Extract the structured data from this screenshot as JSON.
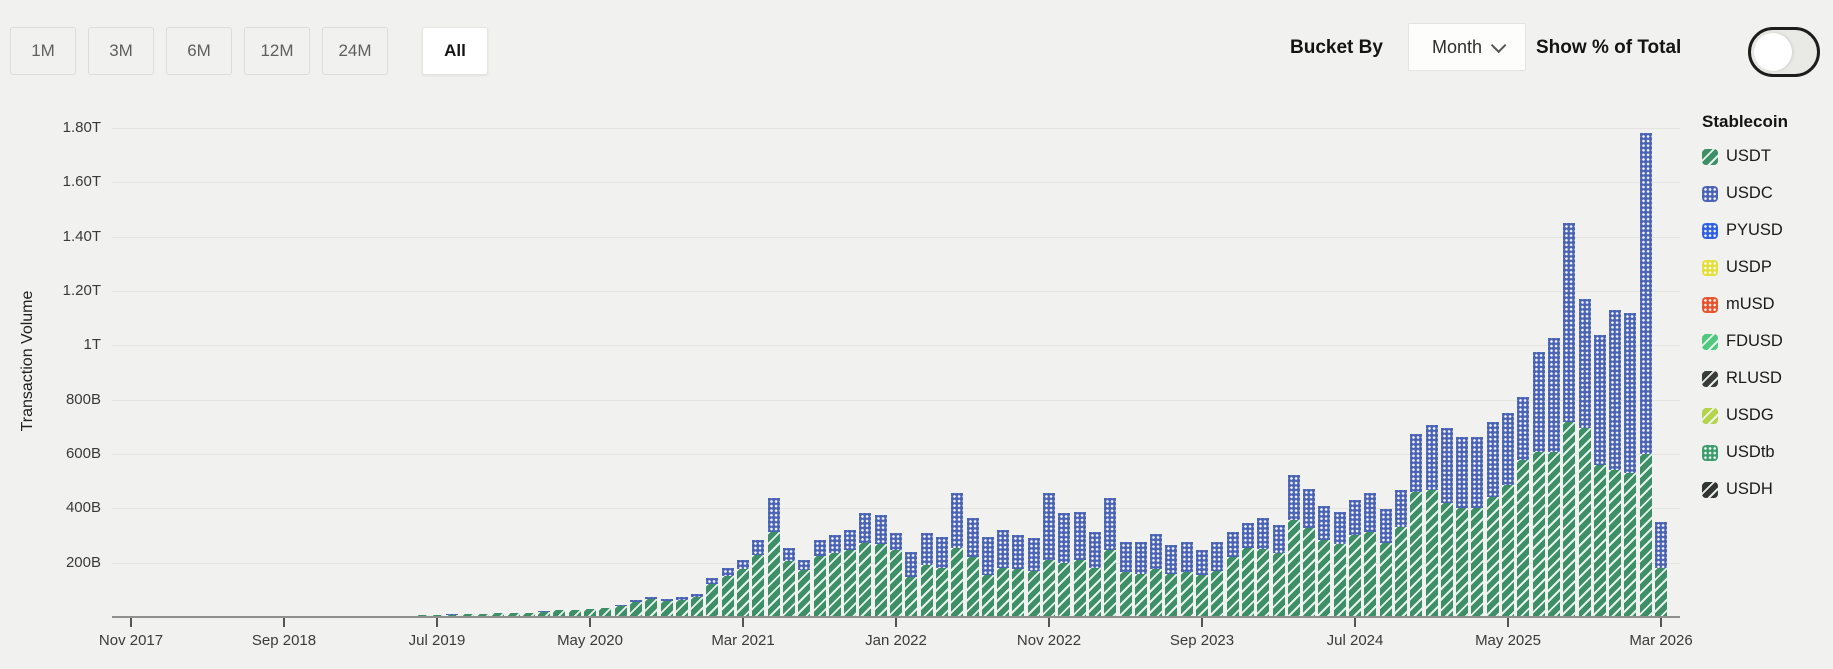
{
  "controls": {
    "range_buttons": [
      {
        "label": "1M",
        "selected": false
      },
      {
        "label": "3M",
        "selected": false
      },
      {
        "label": "6M",
        "selected": false
      },
      {
        "label": "12M",
        "selected": false
      },
      {
        "label": "24M",
        "selected": false
      },
      {
        "label": "All",
        "selected": true
      }
    ],
    "bucket_by_label": "Bucket By",
    "bucket_value": "Month",
    "show_pct_label": "Show % of Total",
    "show_pct_toggle_on": false
  },
  "icons": {
    "bucket_dropdown_chevron": "chevron-down",
    "toggle_knob": "circle"
  },
  "legend": {
    "title": "Stablecoin",
    "items": [
      {
        "label": "USDT",
        "color": "#3E8E68",
        "pattern": "diagonal"
      },
      {
        "label": "USDC",
        "color": "#4A63B4",
        "pattern": "dots"
      },
      {
        "label": "PYUSD",
        "color": "#2E5FE6",
        "pattern": "dots"
      },
      {
        "label": "USDP",
        "color": "#E3DE39",
        "pattern": "dots"
      },
      {
        "label": "mUSD",
        "color": "#E8532C",
        "pattern": "dots"
      },
      {
        "label": "FDUSD",
        "color": "#4FC97D",
        "pattern": "diagonal"
      },
      {
        "label": "RLUSD",
        "color": "#3B3B3B",
        "pattern": "diagonal"
      },
      {
        "label": "USDG",
        "color": "#B5D44B",
        "pattern": "diagonal"
      },
      {
        "label": "USDtb",
        "color": "#3B9C6C",
        "pattern": "dots"
      },
      {
        "label": "USDH",
        "color": "#343434",
        "pattern": "diagonal"
      }
    ]
  },
  "chart_data": {
    "type": "bar",
    "stacked": true,
    "unit": "billions USD",
    "ylabel": "Transaction Volume",
    "xlabel": "",
    "grid": "horizontal",
    "legend_position": "right",
    "ylim": [
      0,
      1900
    ],
    "yticks": [
      {
        "value": 200,
        "label": "200B"
      },
      {
        "value": 400,
        "label": "400B"
      },
      {
        "value": 600,
        "label": "600B"
      },
      {
        "value": 800,
        "label": "800B"
      },
      {
        "value": 1000,
        "label": "1T"
      },
      {
        "value": 1200,
        "label": "1.20T"
      },
      {
        "value": 1400,
        "label": "1.40T"
      },
      {
        "value": 1600,
        "label": "1.60T"
      },
      {
        "value": 1800,
        "label": "1.80T"
      }
    ],
    "xticks": [
      {
        "month_index": 0,
        "label": "Nov 2017"
      },
      {
        "month_index": 10,
        "label": "Sep 2018"
      },
      {
        "month_index": 20,
        "label": "Jul 2019"
      },
      {
        "month_index": 30,
        "label": "May 2020"
      },
      {
        "month_index": 40,
        "label": "Mar 2021"
      },
      {
        "month_index": 50,
        "label": "Jan 2022"
      },
      {
        "month_index": 60,
        "label": "Nov 2022"
      },
      {
        "month_index": 70,
        "label": "Sep 2023"
      },
      {
        "month_index": 80,
        "label": "Jul 2024"
      },
      {
        "month_index": 90,
        "label": "May 2025"
      },
      {
        "month_index": 100,
        "label": "Mar 2026"
      }
    ],
    "months": [
      "Nov 2017",
      "Dec 2017",
      "Jan 2018",
      "Feb 2018",
      "Mar 2018",
      "Apr 2018",
      "May 2018",
      "Jun 2018",
      "Jul 2018",
      "Aug 2018",
      "Sep 2018",
      "Oct 2018",
      "Nov 2018",
      "Dec 2018",
      "Jan 2019",
      "Feb 2019",
      "Mar 2019",
      "Apr 2019",
      "May 2019",
      "Jun 2019",
      "Jul 2019",
      "Aug 2019",
      "Sep 2019",
      "Oct 2019",
      "Nov 2019",
      "Dec 2019",
      "Jan 2020",
      "Feb 2020",
      "Mar 2020",
      "Apr 2020",
      "May 2020",
      "Jun 2020",
      "Jul 2020",
      "Aug 2020",
      "Sep 2020",
      "Oct 2020",
      "Nov 2020",
      "Dec 2020",
      "Jan 2021",
      "Feb 2021",
      "Mar 2021",
      "Apr 2021",
      "May 2021",
      "Jun 2021",
      "Jul 2021",
      "Aug 2021",
      "Sep 2021",
      "Oct 2021",
      "Nov 2021",
      "Dec 2021",
      "Jan 2022",
      "Feb 2022",
      "Mar 2022",
      "Apr 2022",
      "May 2022",
      "Jun 2022",
      "Jul 2022",
      "Aug 2022",
      "Sep 2022",
      "Oct 2022",
      "Nov 2022",
      "Dec 2022",
      "Jan 2023",
      "Feb 2023",
      "Mar 2023",
      "Apr 2023",
      "May 2023",
      "Jun 2023",
      "Jul 2023",
      "Aug 2023",
      "Sep 2023",
      "Oct 2023",
      "Nov 2023",
      "Dec 2023",
      "Jan 2024",
      "Feb 2024",
      "Mar 2024",
      "Apr 2024",
      "May 2024",
      "Jun 2024",
      "Jul 2024",
      "Aug 2024",
      "Sep 2024",
      "Oct 2024",
      "Nov 2024",
      "Dec 2024",
      "Jan 2025",
      "Feb 2025",
      "Mar 2025",
      "Apr 2025",
      "May 2025",
      "Jun 2025",
      "Jul 2025",
      "Aug 2025",
      "Sep 2025",
      "Oct 2025",
      "Nov 2025",
      "Dec 2025",
      "Jan 2026",
      "Feb 2026",
      "Mar 2026"
    ],
    "series": [
      {
        "name": "USDT",
        "color": "#3E8E68",
        "pattern": "diagonal",
        "values": [
          0.2,
          0.3,
          0.3,
          0.4,
          0.4,
          0.5,
          0.5,
          0.6,
          0.6,
          0.8,
          1,
          1,
          1.2,
          1.5,
          2,
          2.5,
          3,
          4,
          5,
          6,
          8,
          9,
          10,
          11,
          14,
          13,
          16,
          20,
          25,
          24,
          29,
          32,
          41,
          57,
          66,
          58,
          64,
          73,
          122,
          152,
          178,
          228,
          313,
          205,
          172,
          225,
          235,
          245,
          272,
          270,
          246,
          147,
          191,
          180,
          254,
          220,
          154,
          180,
          175,
          170,
          210,
          200,
          210,
          180,
          246,
          165,
          160,
          175,
          160,
          165,
          155,
          170,
          221,
          254,
          250,
          235,
          357,
          327,
          283,
          270,
          302,
          313,
          272,
          331,
          460,
          467,
          419,
          401,
          401,
          441,
          485,
          577,
          607,
          609,
          717,
          694,
          560,
          540,
          530,
          600,
          180
        ]
      },
      {
        "name": "USDC",
        "color": "#4A63B4",
        "pattern": "dots",
        "values": [
          0,
          0,
          0,
          0,
          0,
          0,
          0,
          0,
          0,
          0,
          0,
          0,
          0,
          0,
          0,
          0,
          0,
          0,
          0,
          0,
          0.3,
          0.4,
          0.5,
          0.5,
          0.6,
          0.6,
          0.5,
          1,
          1,
          1,
          1,
          1,
          3,
          7,
          9,
          8,
          9,
          11,
          21,
          28,
          32,
          55,
          127,
          49,
          38,
          58,
          67,
          75,
          110,
          105,
          63,
          92,
          118,
          114,
          202,
          144,
          140,
          140,
          127,
          120,
          246,
          182,
          176,
          133,
          191,
          111,
          116,
          130,
          105,
          111,
          91,
          106,
          92,
          92,
          114,
          103,
          165,
          144,
          125,
          116,
          128,
          143,
          125,
          136,
          213,
          239,
          276,
          261,
          261,
          276,
          265,
          232,
          367,
          417,
          733,
          476,
          480,
          590,
          590,
          1180,
          170
        ]
      }
    ],
    "other_series_note": "PYUSD, USDP, mUSD, FDUSD, RLUSD, USDG, USDtb and USDH volumes are too small to be visible at this scale"
  }
}
